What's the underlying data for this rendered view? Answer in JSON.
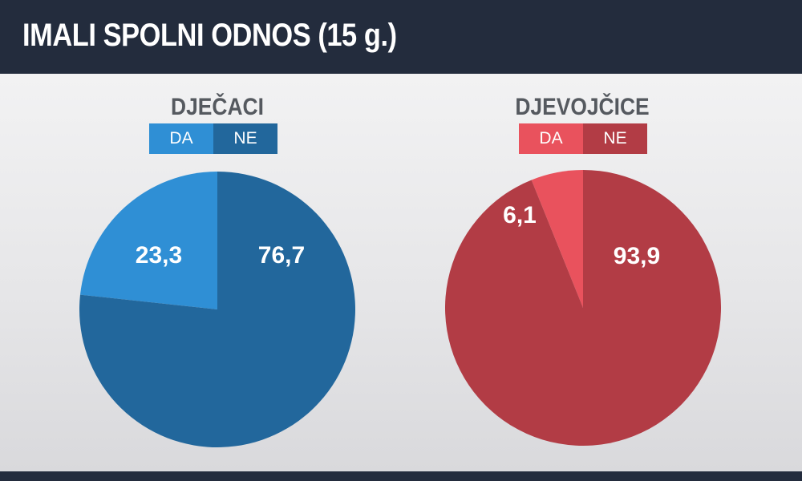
{
  "title": "IMALI SPOLNI ODNOS (15 g.)",
  "chart_data": [
    {
      "type": "pie",
      "title": "DJEČACI",
      "legend": [
        "DA",
        "NE"
      ],
      "labels": [
        "DA",
        "NE"
      ],
      "values": [
        23.3,
        76.7
      ],
      "value_labels": [
        "23,3",
        "76,7"
      ],
      "colors": [
        "#2f8fd5",
        "#22679c"
      ]
    },
    {
      "type": "pie",
      "title": "DJEVOJČICE",
      "legend": [
        "DA",
        "NE"
      ],
      "labels": [
        "DA",
        "NE"
      ],
      "values": [
        6.1,
        93.9
      ],
      "value_labels": [
        "6,1",
        "93,9"
      ],
      "colors": [
        "#e9525d",
        "#b23c45"
      ]
    }
  ]
}
